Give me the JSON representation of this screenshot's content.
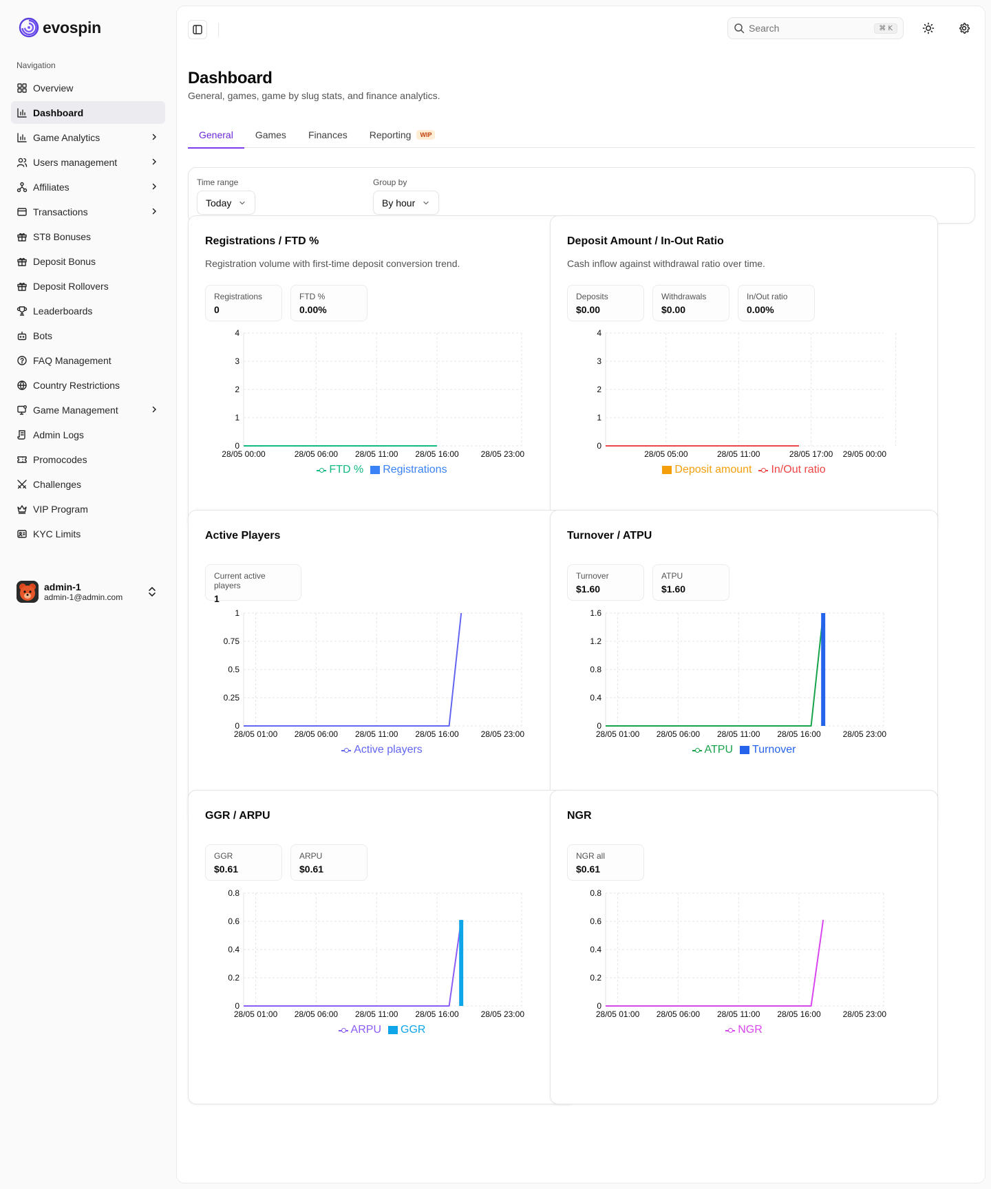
{
  "brand": {
    "name": "evospin"
  },
  "sidebar": {
    "section_title": "Navigation",
    "items": [
      {
        "label": "Overview",
        "icon": "overview-grid-icon",
        "chevron": false,
        "active": false
      },
      {
        "label": "Dashboard",
        "icon": "bar-chart-icon",
        "chevron": false,
        "active": true
      },
      {
        "label": "Game Analytics",
        "icon": "bar-chart-icon",
        "chevron": true,
        "active": false
      },
      {
        "label": "Users management",
        "icon": "users-icon",
        "chevron": true,
        "active": false
      },
      {
        "label": "Affiliates",
        "icon": "network-icon",
        "chevron": true,
        "active": false
      },
      {
        "label": "Transactions",
        "icon": "wallet-icon",
        "chevron": true,
        "active": false
      },
      {
        "label": "ST8 Bonuses",
        "icon": "gift-icon",
        "chevron": false,
        "active": false
      },
      {
        "label": "Deposit Bonus",
        "icon": "gift-icon",
        "chevron": false,
        "active": false
      },
      {
        "label": "Deposit Rollovers",
        "icon": "gift-icon",
        "chevron": false,
        "active": false
      },
      {
        "label": "Leaderboards",
        "icon": "trophy-icon",
        "chevron": false,
        "active": false
      },
      {
        "label": "Bots",
        "icon": "bot-icon",
        "chevron": false,
        "active": false
      },
      {
        "label": "FAQ Management",
        "icon": "help-circle-icon",
        "chevron": false,
        "active": false
      },
      {
        "label": "Country Restrictions",
        "icon": "globe-icon",
        "chevron": false,
        "active": false
      },
      {
        "label": "Game Management",
        "icon": "monitor-icon",
        "chevron": true,
        "active": false
      },
      {
        "label": "Admin Logs",
        "icon": "scroll-icon",
        "chevron": false,
        "active": false
      },
      {
        "label": "Promocodes",
        "icon": "ticket-icon",
        "chevron": false,
        "active": false
      },
      {
        "label": "Challenges",
        "icon": "swords-icon",
        "chevron": false,
        "active": false
      },
      {
        "label": "VIP Program",
        "icon": "crown-icon",
        "chevron": false,
        "active": false
      },
      {
        "label": "KYC Limits",
        "icon": "id-card-icon",
        "chevron": false,
        "active": false
      }
    ]
  },
  "user": {
    "name": "admin-1",
    "email": "admin-1@admin.com"
  },
  "topbar": {
    "search_placeholder": "Search",
    "search_shortcut": "⌘ K"
  },
  "page": {
    "title": "Dashboard",
    "subtitle": "General, games, game by slug stats, and finance analytics."
  },
  "tabs": [
    {
      "label": "General",
      "active": true,
      "badge": ""
    },
    {
      "label": "Games",
      "active": false,
      "badge": ""
    },
    {
      "label": "Finances",
      "active": false,
      "badge": ""
    },
    {
      "label": "Reporting",
      "active": false,
      "badge": "WIP"
    }
  ],
  "filters": {
    "time_range": {
      "label": "Time range",
      "value": "Today"
    },
    "group_by": {
      "label": "Group by",
      "value": "By hour"
    }
  },
  "colors": {
    "accent": "#7c3aed",
    "ftd": "#10b981",
    "registrations": "#3b82f6",
    "deposit_amount": "#f59e0b",
    "inout_ratio": "#ef4444",
    "active_players": "#6366f1",
    "atpu": "#16a34a",
    "turnover": "#2563eb",
    "arpu": "#8b5cf6",
    "ggr": "#0ea5e9",
    "ngr": "#d946ef"
  },
  "cards": [
    {
      "title": "Registrations / FTD %",
      "subtitle": "Registration volume with first-time deposit conversion trend.",
      "stats": [
        {
          "label": "Registrations",
          "value": "0"
        },
        {
          "label": "FTD %",
          "value": "0.00%"
        }
      ]
    },
    {
      "title": "Deposit Amount / In-Out Ratio",
      "subtitle": "Cash inflow against withdrawal ratio over time.",
      "stats": [
        {
          "label": "Deposits",
          "value": "$0.00"
        },
        {
          "label": "Withdrawals",
          "value": "$0.00"
        },
        {
          "label": "In/Out ratio",
          "value": "0.00%"
        }
      ]
    },
    {
      "title": "Active Players",
      "subtitle": "",
      "stats": [
        {
          "label": "Current active players",
          "value": "1"
        }
      ]
    },
    {
      "title": "Turnover / ATPU",
      "subtitle": "",
      "stats": [
        {
          "label": "Turnover",
          "value": "$1.60"
        },
        {
          "label": "ATPU",
          "value": "$1.60"
        }
      ]
    },
    {
      "title": "GGR / ARPU",
      "subtitle": "",
      "stats": [
        {
          "label": "GGR",
          "value": "$0.61"
        },
        {
          "label": "ARPU",
          "value": "$0.61"
        }
      ]
    },
    {
      "title": "NGR",
      "subtitle": "",
      "stats": [
        {
          "label": "NGR all",
          "value": "$0.61"
        }
      ]
    }
  ],
  "chart_data": [
    {
      "type": "line",
      "title": "Registrations / FTD %",
      "x_ticks": [
        "28/05 00:00",
        "28/05 06:00",
        "28/05 11:00",
        "28/05 16:00",
        "28/05 23:00"
      ],
      "y_ticks": [
        "0",
        "1",
        "2",
        "3",
        "4"
      ],
      "ylim": [
        0,
        4
      ],
      "series": [
        {
          "name": "FTD %",
          "kind": "line",
          "color": "#10b981",
          "x": [
            "28/05 00:00",
            "28/05 16:00"
          ],
          "values": [
            0,
            0
          ]
        },
        {
          "name": "Registrations",
          "kind": "bar",
          "color": "#3b82f6",
          "x": [],
          "values": []
        }
      ],
      "legend": "bottom"
    },
    {
      "type": "line",
      "title": "Deposit Amount / In-Out Ratio",
      "x_ticks": [
        "28/05 05:00",
        "28/05 11:00",
        "28/05 17:00",
        "29/05 00:00"
      ],
      "y_ticks": [
        "0",
        "1",
        "2",
        "3",
        "4"
      ],
      "ylim": [
        0,
        4
      ],
      "series": [
        {
          "name": "Deposit amount",
          "kind": "bar",
          "color": "#f59e0b",
          "x": [],
          "values": []
        },
        {
          "name": "In/Out ratio",
          "kind": "line",
          "color": "#ef4444",
          "x": [
            "28/05 00:00",
            "28/05 16:00"
          ],
          "values": [
            0,
            0
          ]
        }
      ],
      "legend": "bottom"
    },
    {
      "type": "line",
      "title": "Active Players",
      "x_ticks": [
        "28/05 01:00",
        "28/05 06:00",
        "28/05 11:00",
        "28/05 16:00",
        "28/05 23:00"
      ],
      "y_ticks": [
        "0",
        "0.25",
        "0.5",
        "0.75",
        "1"
      ],
      "ylim": [
        0,
        1
      ],
      "series": [
        {
          "name": "Active players",
          "kind": "line",
          "color": "#6366f1",
          "x": [
            "28/05 00:00",
            "28/05 17:00",
            "28/05 18:00"
          ],
          "values": [
            0,
            0,
            1
          ]
        }
      ],
      "legend": "bottom"
    },
    {
      "type": "line",
      "title": "Turnover / ATPU",
      "x_ticks": [
        "28/05 01:00",
        "28/05 06:00",
        "28/05 11:00",
        "28/05 16:00",
        "28/05 23:00"
      ],
      "y_ticks": [
        "0",
        "0.4",
        "0.8",
        "1.2",
        "1.6"
      ],
      "ylim": [
        0,
        1.6
      ],
      "series": [
        {
          "name": "ATPU",
          "kind": "line",
          "color": "#16a34a",
          "x": [
            "28/05 00:00",
            "28/05 17:00",
            "28/05 18:00"
          ],
          "values": [
            0,
            0,
            1.6
          ]
        },
        {
          "name": "Turnover",
          "kind": "bar",
          "color": "#2563eb",
          "x": [
            "28/05 18:00"
          ],
          "values": [
            1.6
          ]
        }
      ],
      "legend": "bottom"
    },
    {
      "type": "line",
      "title": "GGR / ARPU",
      "x_ticks": [
        "28/05 01:00",
        "28/05 06:00",
        "28/05 11:00",
        "28/05 16:00",
        "28/05 23:00"
      ],
      "y_ticks": [
        "0",
        "0.2",
        "0.4",
        "0.6",
        "0.8"
      ],
      "ylim": [
        0,
        0.8
      ],
      "series": [
        {
          "name": "ARPU",
          "kind": "line",
          "color": "#8b5cf6",
          "x": [
            "28/05 00:00",
            "28/05 17:00",
            "28/05 18:00"
          ],
          "values": [
            0,
            0,
            0.61
          ]
        },
        {
          "name": "GGR",
          "kind": "bar",
          "color": "#0ea5e9",
          "x": [
            "28/05 18:00"
          ],
          "values": [
            0.61
          ]
        }
      ],
      "legend": "bottom"
    },
    {
      "type": "line",
      "title": "NGR",
      "x_ticks": [
        "28/05 01:00",
        "28/05 06:00",
        "28/05 11:00",
        "28/05 16:00",
        "28/05 23:00"
      ],
      "y_ticks": [
        "0",
        "0.2",
        "0.4",
        "0.6",
        "0.8"
      ],
      "ylim": [
        0,
        0.8
      ],
      "series": [
        {
          "name": "NGR",
          "kind": "line",
          "color": "#d946ef",
          "x": [
            "28/05 00:00",
            "28/05 17:00",
            "28/05 18:00"
          ],
          "values": [
            0,
            0,
            0.61
          ]
        }
      ],
      "legend": "bottom"
    }
  ]
}
